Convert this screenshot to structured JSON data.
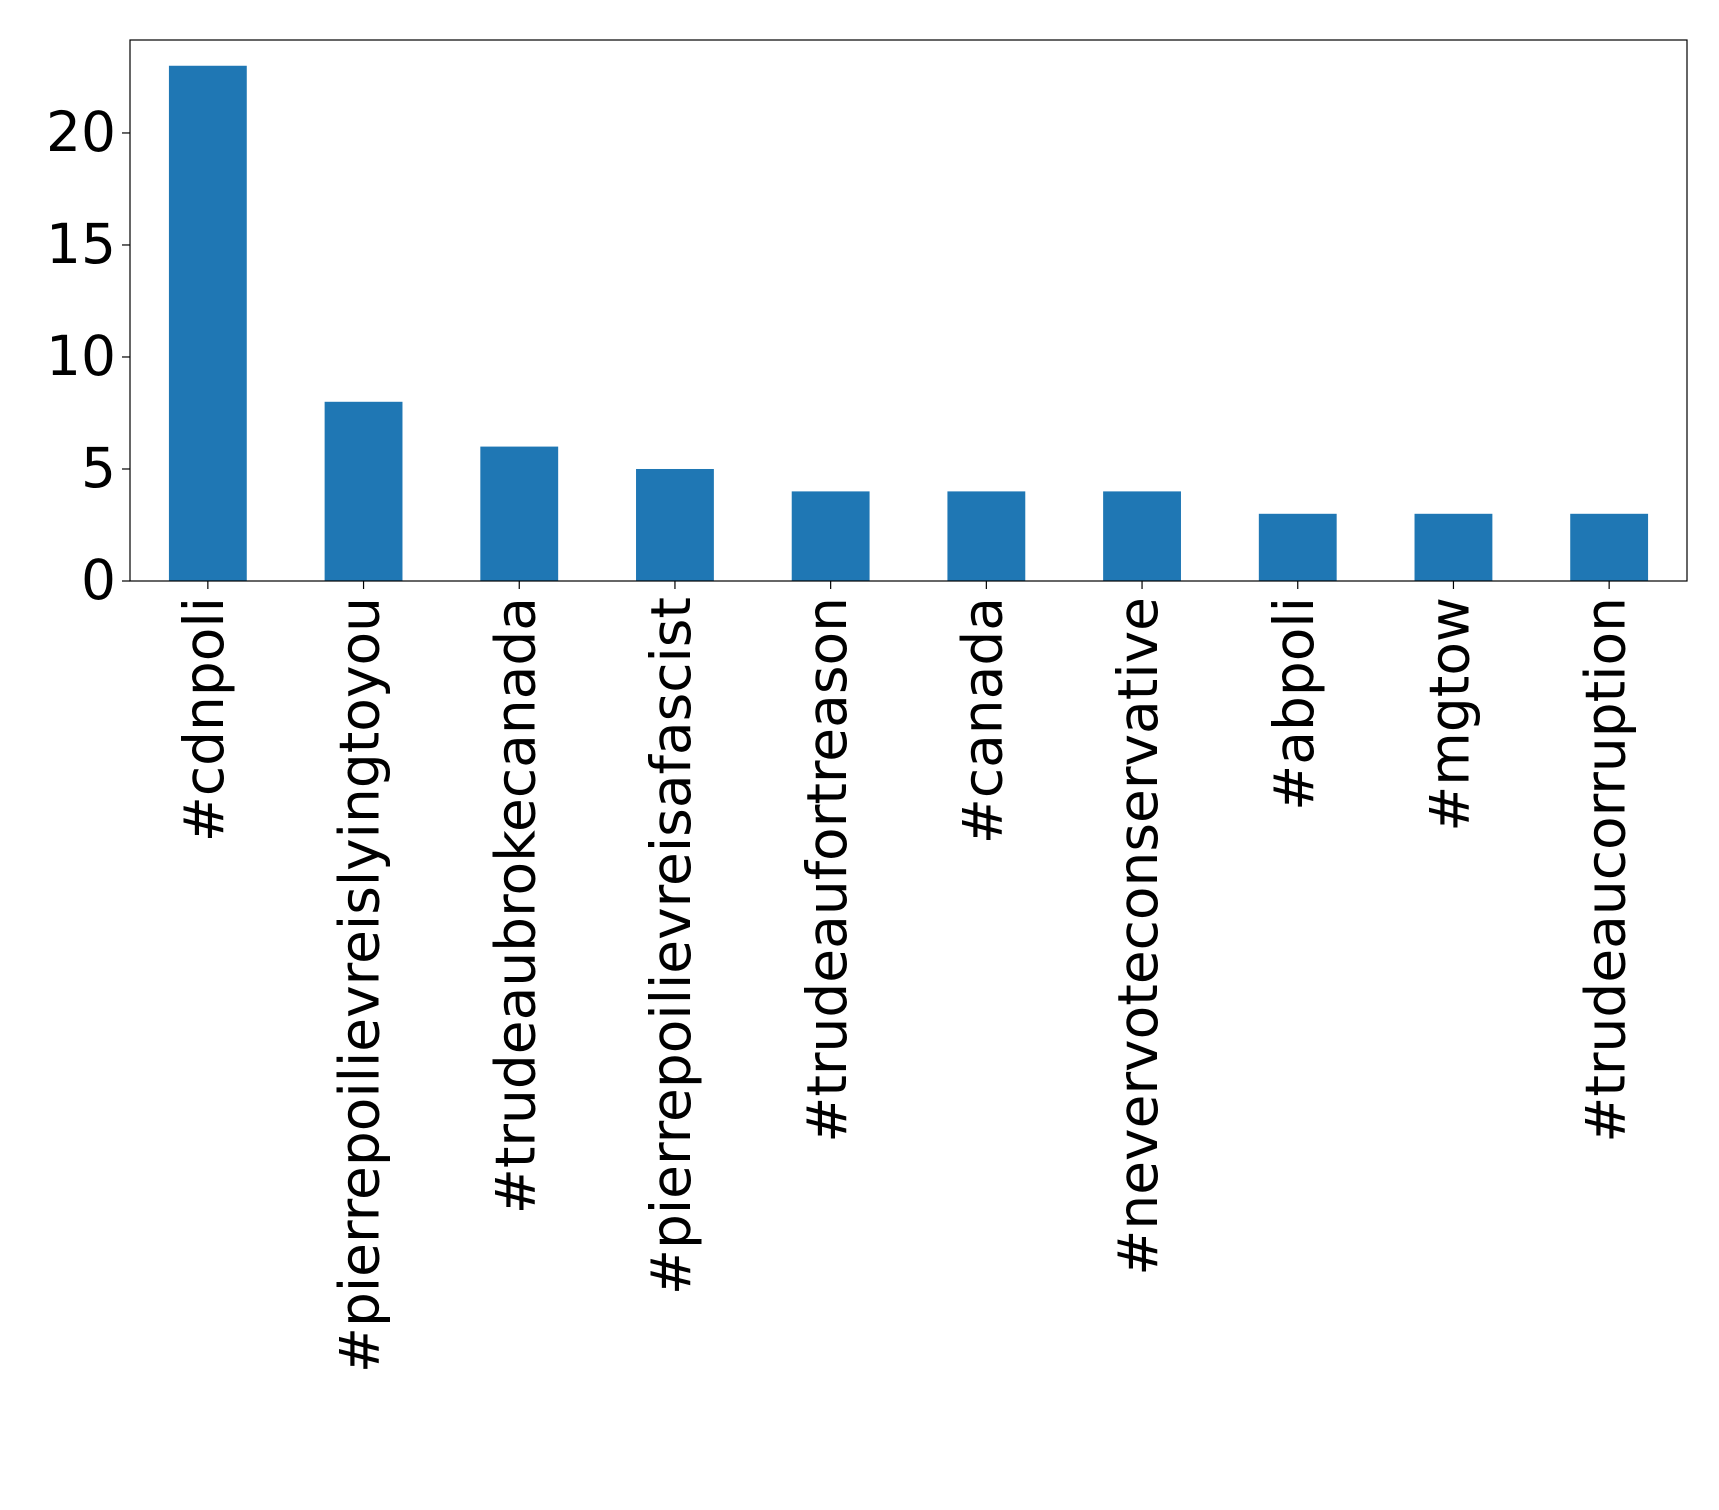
{
  "chart_data": {
    "type": "bar",
    "categories": [
      "#cdnpoli",
      "#pierrepoilievreislyingtoyou",
      "#trudeaubrokecanada",
      "#pierrepoilievreisafascist",
      "#trudeaufortreason",
      "#canada",
      "#nevervoteconservative",
      "#abpoli",
      "#mgtow",
      "#trudeaucorruption"
    ],
    "values": [
      23,
      8,
      6,
      5,
      4,
      4,
      4,
      3,
      3,
      3
    ],
    "color": "#1f77b4",
    "ylim": [
      0,
      24.15
    ],
    "yticks": [
      0,
      5,
      10,
      15,
      20
    ],
    "grid": false
  }
}
